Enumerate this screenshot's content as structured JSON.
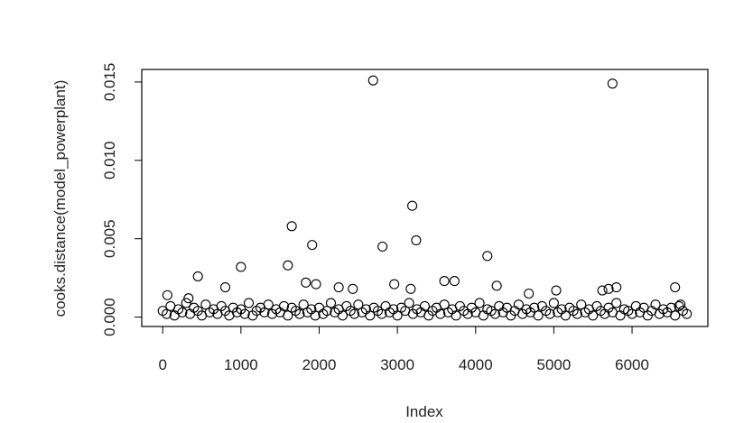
{
  "chart_data": {
    "type": "scatter",
    "xlabel": "Index",
    "ylabel": "cooks.distance(model_powerplant)",
    "xlim": [
      -268,
      6969
    ],
    "ylim": [
      -0.0006,
      0.0158
    ],
    "xticks": [
      0,
      1000,
      2000,
      3000,
      4000,
      5000,
      6000
    ],
    "yticks": [
      {
        "value": 0,
        "label": "0.000"
      },
      {
        "value": 0.005,
        "label": "0.005"
      },
      {
        "value": 0.01,
        "label": "0.010"
      },
      {
        "value": 0.015,
        "label": "0.015"
      }
    ],
    "color": "#000000",
    "x": [
      0,
      50,
      100,
      150,
      200,
      250,
      300,
      350,
      400,
      450,
      500,
      550,
      600,
      650,
      700,
      750,
      800,
      850,
      900,
      950,
      1000,
      1050,
      1100,
      1150,
      1200,
      1250,
      1300,
      1350,
      1400,
      1450,
      1500,
      1550,
      1600,
      1650,
      1700,
      1750,
      1800,
      1850,
      1900,
      1950,
      2000,
      2050,
      2100,
      2150,
      2200,
      2250,
      2300,
      2350,
      2400,
      2450,
      2500,
      2550,
      2600,
      2650,
      2700,
      2750,
      2800,
      2850,
      2900,
      2950,
      3000,
      3050,
      3100,
      3150,
      3200,
      3250,
      3300,
      3350,
      3400,
      3450,
      3500,
      3550,
      3600,
      3650,
      3700,
      3750,
      3800,
      3850,
      3900,
      3950,
      4000,
      4050,
      4100,
      4150,
      4200,
      4250,
      4300,
      4350,
      4400,
      4450,
      4500,
      4550,
      4600,
      4650,
      4700,
      4750,
      4800,
      4850,
      4900,
      4950,
      5000,
      5050,
      5100,
      5150,
      5200,
      5250,
      5300,
      5350,
      5400,
      5450,
      5500,
      5550,
      5600,
      5650,
      5700,
      5750,
      5800,
      5850,
      5900,
      5950,
      6000,
      6050,
      6100,
      6150,
      6200,
      6250,
      6300,
      6350,
      6400,
      6450,
      6500,
      6550,
      6600,
      6650,
      6700,
      2690,
      5750,
      3190,
      1650,
      3240,
      1910,
      2810,
      4150,
      1600,
      1000,
      450,
      3600,
      3730,
      2960,
      4270,
      800,
      5800,
      6550,
      5700,
      5620,
      1830,
      1960,
      2250,
      2430,
      5030,
      3170,
      60,
      330,
      4680,
      6620
    ],
    "values": [
      0.0004,
      0.0002,
      0.0007,
      0.0001,
      0.0005,
      0.0003,
      0.0009,
      0.0002,
      0.0006,
      0.0004,
      0.0001,
      0.0008,
      0.0003,
      0.0005,
      0.0002,
      0.0007,
      0.0004,
      0.0001,
      0.0006,
      0.0003,
      0.0005,
      0.0002,
      0.0009,
      0.0001,
      0.0004,
      0.0006,
      0.0003,
      0.0008,
      0.0002,
      0.0005,
      0.0003,
      0.0007,
      0.0001,
      0.0006,
      0.0004,
      0.0002,
      0.0008,
      0.0003,
      0.0005,
      0.0001,
      0.0006,
      0.0002,
      0.0004,
      0.0009,
      0.0003,
      0.0005,
      0.0001,
      0.0007,
      0.0004,
      0.0002,
      0.0008,
      0.0003,
      0.0005,
      0.0001,
      0.0006,
      0.0004,
      0.0002,
      0.0007,
      0.0003,
      0.0005,
      0.0001,
      0.0006,
      0.0004,
      0.0009,
      0.0002,
      0.0005,
      0.0003,
      0.0007,
      0.0001,
      0.0004,
      0.0006,
      0.0002,
      0.0008,
      0.0003,
      0.0005,
      0.0001,
      0.0007,
      0.0004,
      0.0002,
      0.0006,
      0.0003,
      0.0009,
      0.0001,
      0.0005,
      0.0004,
      0.0002,
      0.0007,
      0.0003,
      0.0006,
      0.0001,
      0.0004,
      0.0008,
      0.0002,
      0.0005,
      0.0003,
      0.0006,
      0.0001,
      0.0007,
      0.0004,
      0.0002,
      0.0009,
      0.0003,
      0.0005,
      0.0001,
      0.0006,
      0.0004,
      0.0002,
      0.0008,
      0.0003,
      0.0005,
      0.0001,
      0.0007,
      0.0004,
      0.0002,
      0.0006,
      0.0003,
      0.0009,
      0.0001,
      0.0005,
      0.0004,
      0.0002,
      0.0007,
      0.0003,
      0.0006,
      0.0001,
      0.0004,
      0.0008,
      0.0002,
      0.0005,
      0.0003,
      0.0006,
      0.0001,
      0.0007,
      0.0004,
      0.0002,
      0.0151,
      0.0149,
      0.0071,
      0.0058,
      0.0049,
      0.0046,
      0.0045,
      0.0039,
      0.0033,
      0.0032,
      0.0026,
      0.0023,
      0.0023,
      0.0021,
      0.002,
      0.0019,
      0.0019,
      0.0019,
      0.0018,
      0.0017,
      0.0022,
      0.0021,
      0.0019,
      0.0018,
      0.0017,
      0.0018,
      0.0014,
      0.0012,
      0.0015,
      0.0008
    ]
  }
}
